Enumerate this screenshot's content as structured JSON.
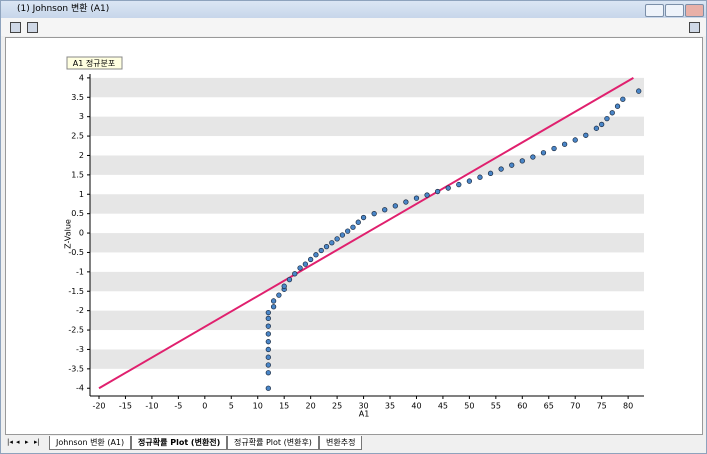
{
  "window": {
    "title": "(1) Johnson 변환 (A1)"
  },
  "tabs": [
    "Johnson 변환 (A1)",
    "정규확률 Plot (변환전)",
    "정규확률 Plot (변환후)",
    "변환추정"
  ],
  "chart_data": {
    "type": "scatter",
    "title": "A1 정규분포",
    "x_label": "A1",
    "y_label": "Z-Value",
    "x": [
      12,
      12,
      12,
      12,
      12,
      12,
      12,
      12,
      12,
      12,
      13,
      13,
      14,
      15,
      15,
      16,
      17,
      18,
      19,
      20,
      21,
      22,
      23,
      24,
      25,
      26,
      27,
      28,
      29,
      30,
      32,
      34,
      36,
      38,
      40,
      42,
      44,
      46,
      48,
      50,
      52,
      54,
      56,
      58,
      60,
      62,
      64,
      66,
      68,
      70,
      72,
      74,
      75,
      76,
      77,
      78,
      79,
      82
    ],
    "values": [
      -4.0,
      -3.6,
      -3.4,
      -3.2,
      -3.0,
      -2.8,
      -2.6,
      -2.4,
      -2.2,
      -2.05,
      -1.9,
      -1.75,
      -1.6,
      -1.45,
      -1.37,
      -1.2,
      -1.05,
      -0.9,
      -0.8,
      -0.68,
      -0.56,
      -0.45,
      -0.35,
      -0.25,
      -0.15,
      -0.05,
      0.05,
      0.15,
      0.28,
      0.4,
      0.5,
      0.6,
      0.7,
      0.8,
      0.9,
      0.98,
      1.07,
      1.16,
      1.25,
      1.34,
      1.44,
      1.54,
      1.65,
      1.75,
      1.86,
      1.96,
      2.07,
      2.18,
      2.29,
      2.4,
      2.52,
      2.7,
      2.8,
      2.95,
      3.1,
      3.27,
      3.45,
      3.66
    ],
    "color": "#4a86c8",
    "reference_line": {
      "x": [
        -20,
        81
      ],
      "y": [
        -4,
        4
      ],
      "color": "#e0206e"
    },
    "xlim": [
      -21.7,
      83
    ],
    "ylim": [
      -4.2,
      4.1
    ],
    "xticks": [
      -20,
      -15,
      -10,
      -5,
      0,
      5,
      10,
      15,
      20,
      25,
      30,
      35,
      40,
      45,
      50,
      55,
      60,
      65,
      70,
      75,
      80
    ],
    "yticks": [
      -4,
      -3.5,
      -3,
      -2.5,
      -2,
      -1.5,
      -1,
      -0.5,
      0,
      0.5,
      1,
      1.5,
      2,
      2.5,
      3,
      3.5,
      4
    ],
    "grid_bands": true
  }
}
